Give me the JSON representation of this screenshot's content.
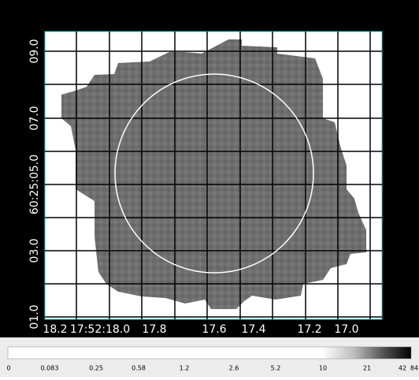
{
  "y_axis_labels": [
    "09.0",
    "07.0",
    "60:25:05.0",
    "03.0",
    "01.0"
  ],
  "x_axis_labels": [
    "18.2",
    "17:52:18.0",
    "17.8",
    "17.6",
    "17.4",
    "17.2",
    "17.0"
  ],
  "colorbar_labels": [
    "0",
    "0.083",
    "0.25",
    "0.58",
    "1.2",
    "2.6",
    "5.2",
    "10",
    "21",
    "42",
    "84"
  ]
}
